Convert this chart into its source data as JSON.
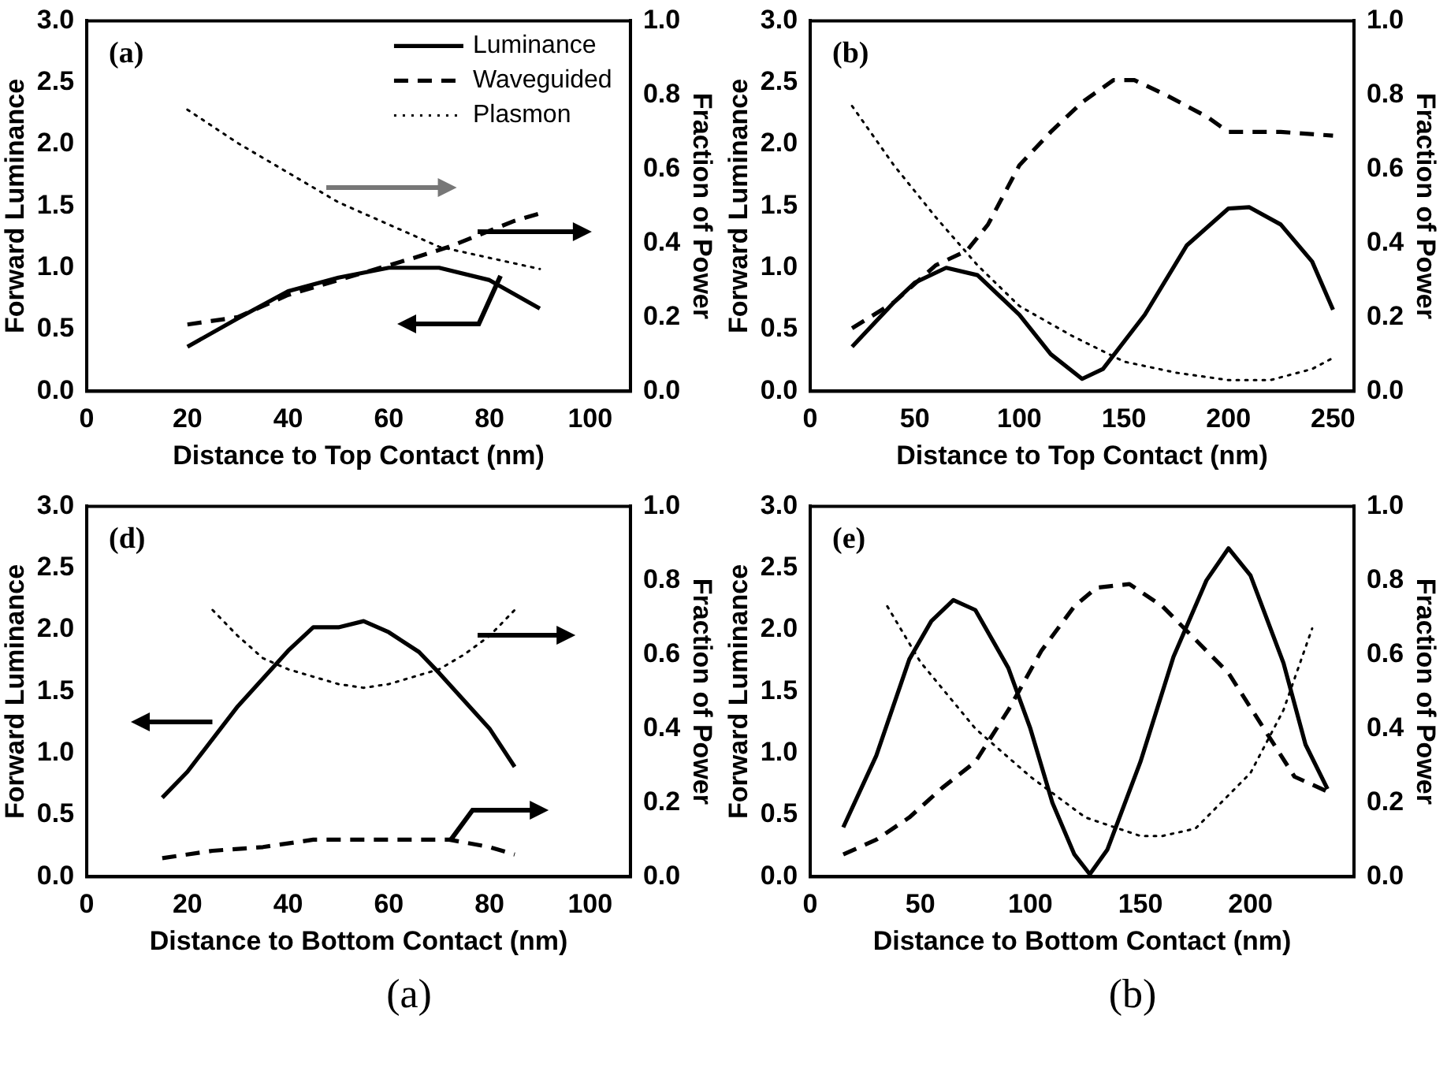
{
  "chart_data": [
    {
      "type": "line",
      "xlabel": "Distance to Top Contact (nm)",
      "ylabel": "Forward Luminance",
      "y2label": "Fraction of Power",
      "legend": "top right",
      "annotations": [
        "(a)"
      ],
      "xlim": [
        0,
        108
      ],
      "xticks": [
        0,
        20,
        40,
        60,
        80,
        100
      ],
      "ylim": [
        0,
        3
      ],
      "yticks": [
        {
          "value": 0,
          "label": "0.0"
        },
        {
          "value": 0.5,
          "label": "0.5"
        },
        {
          "value": 1,
          "label": "1.0"
        },
        {
          "value": 1.5,
          "label": "1.5"
        },
        {
          "value": 2,
          "label": "2.0"
        },
        {
          "value": 2.5,
          "label": "2.5"
        },
        {
          "value": 3,
          "label": "3.0"
        }
      ],
      "y2lim": [
        0,
        1
      ],
      "y2ticks": [
        {
          "value": 0,
          "label": "0.0"
        },
        {
          "value": 0.2,
          "label": "0.2"
        },
        {
          "value": 0.4,
          "label": "0.4"
        },
        {
          "value": 0.6,
          "label": "0.6"
        },
        {
          "value": 0.8,
          "label": "0.8"
        },
        {
          "value": 1,
          "label": "1.0"
        }
      ],
      "series": [
        {
          "name": "Luminance",
          "color": "#000000",
          "line_style": "solid",
          "x": [
            20,
            30,
            40,
            50,
            60,
            70,
            80,
            90
          ],
          "values": [
            0.36,
            0.59,
            0.81,
            0.92,
            1.0,
            1.0,
            0.9,
            0.67
          ]
        },
        {
          "name": "Waveguided",
          "color": "#000000",
          "line_style": "dashed",
          "axis": "y2",
          "x": [
            20,
            30,
            40,
            50,
            60,
            65,
            72,
            85,
            90
          ],
          "values": [
            0.18,
            0.2,
            0.26,
            0.3,
            0.34,
            0.36,
            0.39,
            0.46,
            0.48
          ]
        },
        {
          "name": "Plasmon",
          "color": "#000000",
          "line_style": "dotted",
          "axis": "y2",
          "x": [
            20,
            30,
            40,
            50,
            60,
            70,
            80,
            90
          ],
          "values": [
            0.76,
            0.67,
            0.59,
            0.51,
            0.45,
            0.39,
            0.36,
            0.33
          ]
        }
      ]
    },
    {
      "type": "line",
      "xlabel": "Distance to Top Contact (nm)",
      "ylabel": "Forward Luminance",
      "y2label": "Fraction of Power",
      "annotations": [
        "(b)"
      ],
      "xlim": [
        0,
        260
      ],
      "xticks": [
        0,
        50,
        100,
        150,
        200,
        250
      ],
      "ylim": [
        0,
        3
      ],
      "yticks": [
        {
          "value": 0,
          "label": "0.0"
        },
        {
          "value": 0.5,
          "label": "0.5"
        },
        {
          "value": 1,
          "label": "1.0"
        },
        {
          "value": 1.5,
          "label": "1.5"
        },
        {
          "value": 2,
          "label": "2.0"
        },
        {
          "value": 2.5,
          "label": "2.5"
        },
        {
          "value": 3,
          "label": "3.0"
        }
      ],
      "y2lim": [
        0,
        1
      ],
      "y2ticks": [
        {
          "value": 0,
          "label": "0.0"
        },
        {
          "value": 0.2,
          "label": "0.2"
        },
        {
          "value": 0.4,
          "label": "0.4"
        },
        {
          "value": 0.6,
          "label": "0.6"
        },
        {
          "value": 0.8,
          "label": "0.8"
        },
        {
          "value": 1,
          "label": "1.0"
        }
      ],
      "series": [
        {
          "color": "#000000",
          "line_style": "solid",
          "x": [
            20,
            40,
            50,
            65,
            80,
            100,
            115,
            130,
            140,
            160,
            180,
            200,
            210,
            225,
            240,
            250
          ],
          "values": [
            0.36,
            0.72,
            0.88,
            1.0,
            0.94,
            0.62,
            0.3,
            0.1,
            0.18,
            0.62,
            1.18,
            1.48,
            1.49,
            1.35,
            1.05,
            0.66
          ]
        },
        {
          "color": "#000000",
          "line_style": "dashed",
          "axis": "y2",
          "x": [
            20,
            40,
            60,
            75,
            85,
            100,
            115,
            130,
            145,
            155,
            170,
            190,
            200,
            225,
            250
          ],
          "values": [
            0.17,
            0.24,
            0.34,
            0.38,
            0.45,
            0.61,
            0.7,
            0.78,
            0.84,
            0.84,
            0.8,
            0.74,
            0.7,
            0.7,
            0.69
          ]
        },
        {
          "color": "#000000",
          "line_style": "dotted",
          "axis": "y2",
          "x": [
            20,
            40,
            60,
            80,
            100,
            125,
            150,
            175,
            200,
            220,
            240,
            250
          ],
          "values": [
            0.77,
            0.61,
            0.47,
            0.34,
            0.23,
            0.15,
            0.08,
            0.05,
            0.03,
            0.03,
            0.06,
            0.09
          ]
        }
      ]
    },
    {
      "type": "line",
      "xlabel": "Distance to Bottom Contact (nm)",
      "ylabel": "Forward Luminance",
      "y2label": "Fraction of Power",
      "annotations": [
        "(d)",
        "(a)"
      ],
      "xlim": [
        0,
        108
      ],
      "xticks": [
        0,
        20,
        40,
        60,
        80,
        100
      ],
      "ylim": [
        0,
        3
      ],
      "yticks": [
        {
          "value": 0,
          "label": "0.0"
        },
        {
          "value": 0.5,
          "label": "0.5"
        },
        {
          "value": 1,
          "label": "1.0"
        },
        {
          "value": 1.5,
          "label": "1.5"
        },
        {
          "value": 2,
          "label": "2.0"
        },
        {
          "value": 2.5,
          "label": "2.5"
        },
        {
          "value": 3,
          "label": "3.0"
        }
      ],
      "y2lim": [
        0,
        1
      ],
      "y2ticks": [
        {
          "value": 0,
          "label": "0.0"
        },
        {
          "value": 0.2,
          "label": "0.2"
        },
        {
          "value": 0.4,
          "label": "0.4"
        },
        {
          "value": 0.6,
          "label": "0.6"
        },
        {
          "value": 0.8,
          "label": "0.8"
        },
        {
          "value": 1,
          "label": "1.0"
        }
      ],
      "series": [
        {
          "color": "#000000",
          "line_style": "solid",
          "x": [
            15,
            20,
            30,
            40,
            45,
            50,
            55,
            60,
            66,
            70,
            80,
            85
          ],
          "values": [
            0.64,
            0.85,
            1.38,
            1.83,
            2.02,
            2.02,
            2.07,
            1.98,
            1.82,
            1.65,
            1.2,
            0.89
          ]
        },
        {
          "color": "#000000",
          "line_style": "dashed",
          "axis": "y2",
          "x": [
            15,
            25,
            35,
            45,
            55,
            65,
            72,
            80,
            85
          ],
          "values": [
            0.05,
            0.07,
            0.08,
            0.1,
            0.1,
            0.1,
            0.1,
            0.08,
            0.06
          ]
        },
        {
          "color": "#000000",
          "line_style": "dotted",
          "axis": "y2",
          "x": [
            25,
            30,
            35,
            40,
            50,
            55,
            60,
            70,
            75,
            80,
            85
          ],
          "values": [
            0.72,
            0.65,
            0.59,
            0.56,
            0.52,
            0.51,
            0.52,
            0.56,
            0.6,
            0.65,
            0.72
          ]
        }
      ]
    },
    {
      "type": "line",
      "xlabel": "Distance to Bottom Contact (nm)",
      "ylabel": "Forward Luminance",
      "y2label": "Fraction of Power",
      "annotations": [
        "(e)",
        "(b)"
      ],
      "xlim": [
        0,
        247
      ],
      "xticks": [
        0,
        50,
        100,
        150,
        200
      ],
      "ylim": [
        0,
        3
      ],
      "yticks": [
        {
          "value": 0,
          "label": "0.0"
        },
        {
          "value": 0.5,
          "label": "0.5"
        },
        {
          "value": 1,
          "label": "1.0"
        },
        {
          "value": 1.5,
          "label": "1.5"
        },
        {
          "value": 2,
          "label": "2.0"
        },
        {
          "value": 2.5,
          "label": "2.5"
        },
        {
          "value": 3,
          "label": "3.0"
        }
      ],
      "y2lim": [
        0,
        1
      ],
      "y2ticks": [
        {
          "value": 0,
          "label": "0.0"
        },
        {
          "value": 0.2,
          "label": "0.2"
        },
        {
          "value": 0.4,
          "label": "0.4"
        },
        {
          "value": 0.6,
          "label": "0.6"
        },
        {
          "value": 0.8,
          "label": "0.8"
        },
        {
          "value": 1,
          "label": "1.0"
        }
      ],
      "series": [
        {
          "color": "#000000",
          "line_style": "solid",
          "x": [
            15,
            30,
            45,
            55,
            65,
            75,
            90,
            100,
            110,
            120,
            127,
            135,
            150,
            165,
            180,
            190,
            200,
            215,
            225,
            235
          ],
          "values": [
            0.4,
            0.98,
            1.76,
            2.07,
            2.24,
            2.16,
            1.69,
            1.2,
            0.6,
            0.18,
            0.02,
            0.22,
            0.93,
            1.78,
            2.4,
            2.66,
            2.44,
            1.73,
            1.07,
            0.71
          ]
        },
        {
          "color": "#000000",
          "line_style": "dashed",
          "axis": "y2",
          "x": [
            15,
            30,
            45,
            60,
            75,
            90,
            105,
            120,
            130,
            145,
            160,
            175,
            190,
            205,
            220,
            235
          ],
          "values": [
            0.06,
            0.1,
            0.16,
            0.24,
            0.31,
            0.45,
            0.61,
            0.73,
            0.78,
            0.79,
            0.73,
            0.64,
            0.55,
            0.41,
            0.27,
            0.23
          ]
        },
        {
          "color": "#000000",
          "line_style": "dotted",
          "axis": "y2",
          "x": [
            35,
            50,
            75,
            100,
            125,
            150,
            160,
            175,
            200,
            215,
            228
          ],
          "values": [
            0.73,
            0.58,
            0.4,
            0.27,
            0.16,
            0.11,
            0.11,
            0.13,
            0.28,
            0.45,
            0.67
          ]
        }
      ]
    }
  ]
}
